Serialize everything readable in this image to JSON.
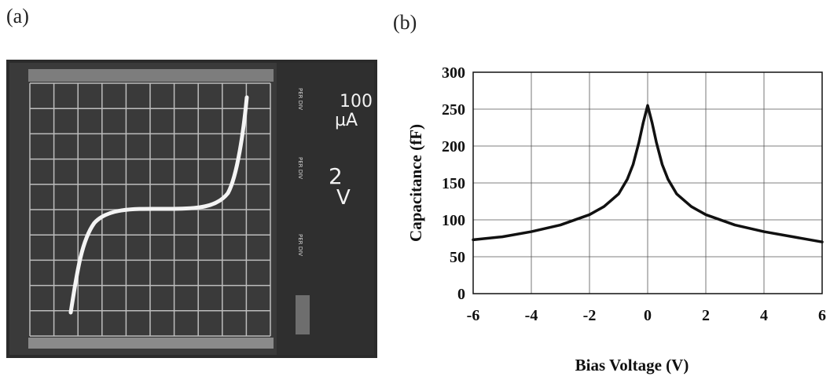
{
  "panels": {
    "a_label": "(a)",
    "b_label": "(b)"
  },
  "scope": {
    "current_scale_value": "100",
    "current_scale_unit": "µA",
    "voltage_scale_value": "2",
    "voltage_scale_unit": "V",
    "side_label": "PER DIV"
  },
  "chart_data": {
    "type": "line",
    "title": "",
    "xlabel": "Bias Voltage (V)",
    "ylabel": "Capacitance (fF)",
    "xlim": [
      -6,
      6
    ],
    "ylim": [
      0,
      300
    ],
    "xticks": [
      -6,
      -4,
      -2,
      0,
      2,
      4,
      6
    ],
    "yticks": [
      0,
      50,
      100,
      150,
      200,
      250,
      300
    ],
    "xtick_labels": [
      "-6",
      "-4",
      "-2",
      "0",
      "2",
      "4",
      "6"
    ],
    "ytick_labels": [
      "0",
      "50",
      "100",
      "150",
      "200",
      "250",
      "300"
    ],
    "grid": true,
    "legend": "none",
    "line_color": "#111111",
    "series": [
      {
        "x": [
          -6,
          -5,
          -4,
          -3,
          -2,
          -1.5,
          -1,
          -0.7,
          -0.5,
          -0.3,
          -0.15,
          0,
          0.15,
          0.3,
          0.5,
          0.7,
          1,
          1.5,
          2,
          3,
          4,
          5,
          6
        ],
        "values": [
          73,
          77,
          84,
          93,
          107,
          118,
          135,
          155,
          175,
          205,
          232,
          255,
          232,
          205,
          175,
          155,
          135,
          118,
          107,
          93,
          84,
          77,
          70
        ]
      }
    ]
  }
}
